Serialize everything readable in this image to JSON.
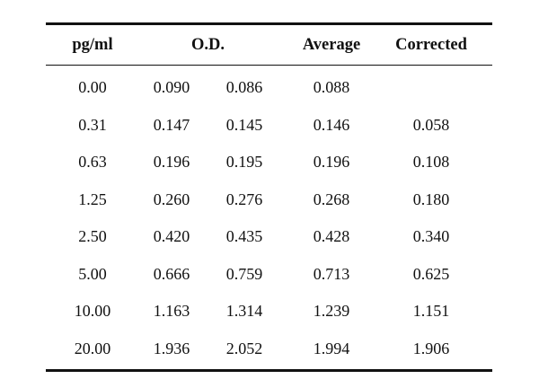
{
  "table": {
    "headers": {
      "concentration": "pg/ml",
      "od": "O.D.",
      "average": "Average",
      "corrected": "Corrected"
    },
    "rows": [
      {
        "conc": "0.00",
        "od1": "0.090",
        "od2": "0.086",
        "avg": "0.088",
        "corr": ""
      },
      {
        "conc": "0.31",
        "od1": "0.147",
        "od2": "0.145",
        "avg": "0.146",
        "corr": "0.058"
      },
      {
        "conc": "0.63",
        "od1": "0.196",
        "od2": "0.195",
        "avg": "0.196",
        "corr": "0.108"
      },
      {
        "conc": "1.25",
        "od1": "0.260",
        "od2": "0.276",
        "avg": "0.268",
        "corr": "0.180"
      },
      {
        "conc": "2.50",
        "od1": "0.420",
        "od2": "0.435",
        "avg": "0.428",
        "corr": "0.340"
      },
      {
        "conc": "5.00",
        "od1": "0.666",
        "od2": "0.759",
        "avg": "0.713",
        "corr": "0.625"
      },
      {
        "conc": "10.00",
        "od1": "1.163",
        "od2": "1.314",
        "avg": "1.239",
        "corr": "1.151"
      },
      {
        "conc": "20.00",
        "od1": "1.936",
        "od2": "2.052",
        "avg": "1.994",
        "corr": "1.906"
      }
    ]
  }
}
